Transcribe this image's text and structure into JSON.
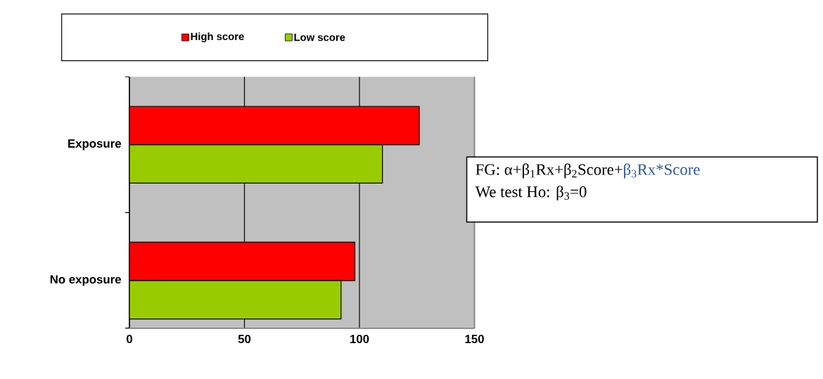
{
  "chart_data": {
    "type": "bar",
    "orientation": "horizontal",
    "categories": [
      "Exposure",
      "No exposure"
    ],
    "series": [
      {
        "name": "High score",
        "color": "#ff0000",
        "values": [
          126,
          98
        ]
      },
      {
        "name": "Low score",
        "color": "#99cc00",
        "values": [
          110,
          92
        ]
      }
    ],
    "xlim": [
      0,
      150
    ],
    "xticks": [
      0,
      50,
      100,
      150
    ],
    "grid": "x",
    "legend": "top",
    "annotations": [
      "FG: α+β$_{1}$Rx+β$_{2}$Score+",
      "β$_{3}$Rx*Score",
      "We test Ho: β$_{3}$=0"
    ]
  }
}
